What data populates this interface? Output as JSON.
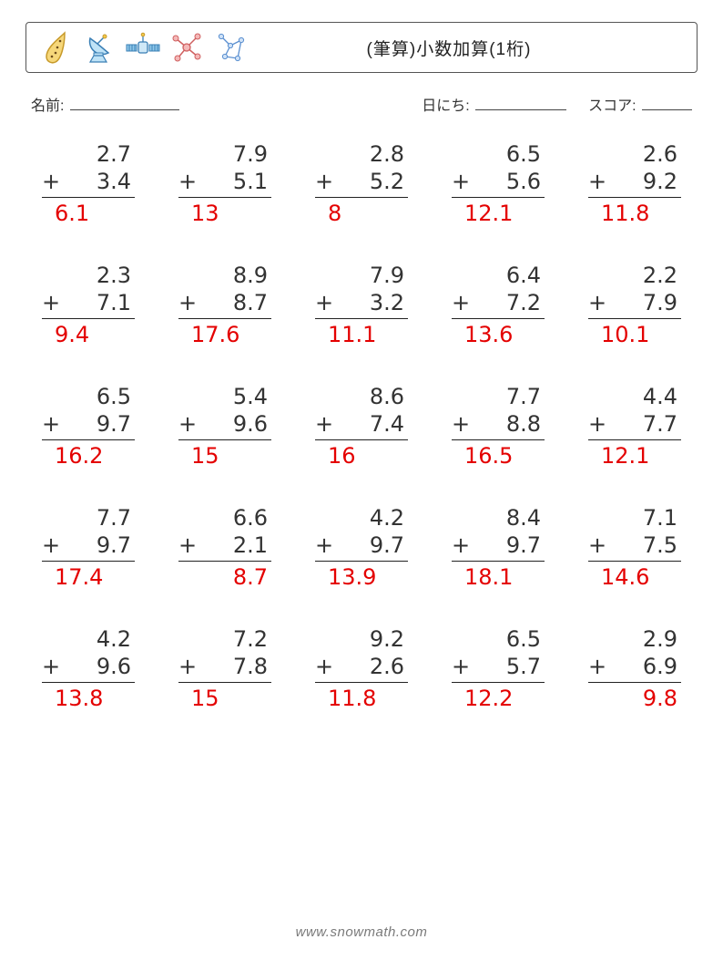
{
  "header": {
    "title": "(筆算)小数加算(1桁)"
  },
  "labels": {
    "name": "名前:",
    "date": "日にち:",
    "score": "スコア:"
  },
  "answer_color": "#e40000",
  "problems": [
    {
      "a": "2.7",
      "b": "3.4",
      "ans": "6.1",
      "align": "left"
    },
    {
      "a": "7.9",
      "b": "5.1",
      "ans": "13",
      "align": "left"
    },
    {
      "a": "2.8",
      "b": "5.2",
      "ans": "8",
      "align": "left"
    },
    {
      "a": "6.5",
      "b": "5.6",
      "ans": "12.1",
      "align": "left"
    },
    {
      "a": "2.6",
      "b": "9.2",
      "ans": "11.8",
      "align": "left"
    },
    {
      "a": "2.3",
      "b": "7.1",
      "ans": "9.4",
      "align": "left"
    },
    {
      "a": "8.9",
      "b": "8.7",
      "ans": "17.6",
      "align": "left"
    },
    {
      "a": "7.9",
      "b": "3.2",
      "ans": "11.1",
      "align": "left"
    },
    {
      "a": "6.4",
      "b": "7.2",
      "ans": "13.6",
      "align": "left"
    },
    {
      "a": "2.2",
      "b": "7.9",
      "ans": "10.1",
      "align": "left"
    },
    {
      "a": "6.5",
      "b": "9.7",
      "ans": "16.2",
      "align": "left"
    },
    {
      "a": "5.4",
      "b": "9.6",
      "ans": "15",
      "align": "left"
    },
    {
      "a": "8.6",
      "b": "7.4",
      "ans": "16",
      "align": "left"
    },
    {
      "a": "7.7",
      "b": "8.8",
      "ans": "16.5",
      "align": "left"
    },
    {
      "a": "4.4",
      "b": "7.7",
      "ans": "12.1",
      "align": "left"
    },
    {
      "a": "7.7",
      "b": "9.7",
      "ans": "17.4",
      "align": "left"
    },
    {
      "a": "6.6",
      "b": "2.1",
      "ans": "8.7",
      "align": "right"
    },
    {
      "a": "4.2",
      "b": "9.7",
      "ans": "13.9",
      "align": "left"
    },
    {
      "a": "8.4",
      "b": "9.7",
      "ans": "18.1",
      "align": "left"
    },
    {
      "a": "7.1",
      "b": "7.5",
      "ans": "14.6",
      "align": "left"
    },
    {
      "a": "4.2",
      "b": "9.6",
      "ans": "13.8",
      "align": "left"
    },
    {
      "a": "7.2",
      "b": "7.8",
      "ans": "15",
      "align": "left"
    },
    {
      "a": "9.2",
      "b": "2.6",
      "ans": "11.8",
      "align": "left"
    },
    {
      "a": "6.5",
      "b": "5.7",
      "ans": "12.2",
      "align": "left"
    },
    {
      "a": "2.9",
      "b": "6.9",
      "ans": "9.8",
      "align": "right"
    }
  ],
  "footer": {
    "text": "www.snowmath.com"
  }
}
